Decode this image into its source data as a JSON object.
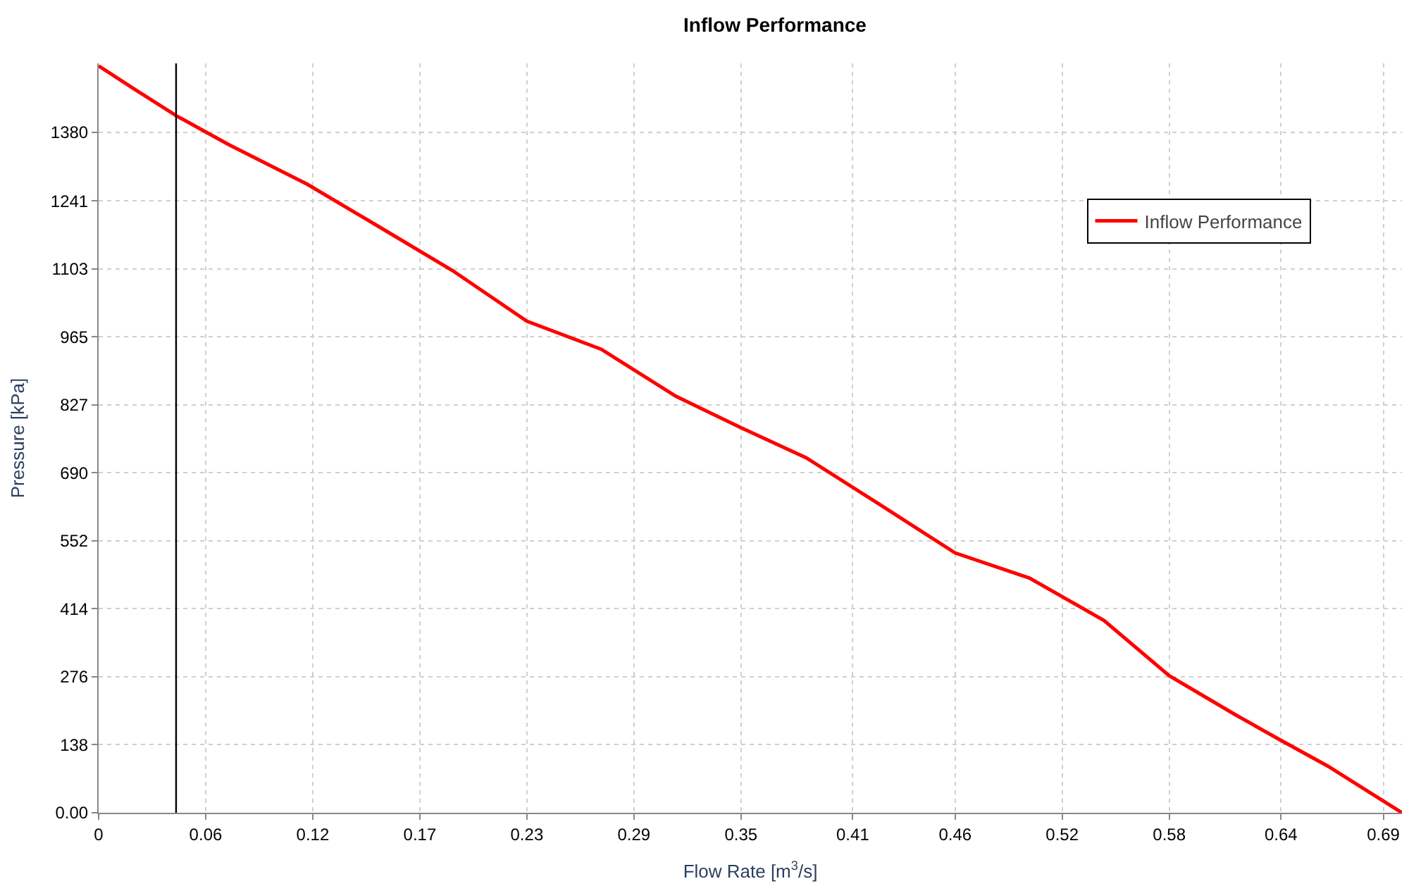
{
  "chart_data": {
    "type": "line",
    "title": "Inflow Performance",
    "xlabel": "Flow Rate [m$^{3}$/s]",
    "ylabel": "Pressure [kPa]",
    "x": [
      0,
      0.02,
      0.0416,
      0.07,
      0.112,
      0.15,
      0.19,
      0.23,
      0.27,
      0.31,
      0.345,
      0.38,
      0.42,
      0.46,
      0.5,
      0.54,
      0.575,
      0.61,
      0.633,
      0.66,
      0.7
    ],
    "series": [
      {
        "name": "Inflow Performance",
        "color": "#ff0000",
        "values": [
          1515,
          1466,
          1414,
          1355,
          1275,
          1190,
          1100,
          997,
          940,
          845,
          781,
          720,
          624,
          527,
          476,
          390,
          278,
          200,
          151,
          95,
          0
        ]
      }
    ],
    "xlim": [
      0,
      0.7
    ],
    "ylim": [
      0,
      1520
    ],
    "xticks": [
      0,
      {
        "value": 0.0575,
        "label": "0.06"
      },
      {
        "value": 0.115,
        "label": "0.12"
      },
      {
        "value": 0.1725,
        "label": "0.17"
      },
      {
        "value": 0.23,
        "label": "0.23"
      },
      {
        "value": 0.2875,
        "label": "0.29"
      },
      {
        "value": 0.345,
        "label": "0.35"
      },
      {
        "value": 0.405,
        "label": "0.41"
      },
      {
        "value": 0.46,
        "label": "0.46"
      },
      {
        "value": 0.5175,
        "label": "0.52"
      },
      {
        "value": 0.575,
        "label": "0.58"
      },
      {
        "value": 0.635,
        "label": "0.64"
      },
      {
        "value": 0.69,
        "label": "0.69"
      }
    ],
    "yticks": [
      {
        "value": 0,
        "label": "0.00"
      },
      {
        "value": 137.9,
        "label": "138"
      },
      {
        "value": 275.8,
        "label": "276"
      },
      {
        "value": 413.7,
        "label": "414"
      },
      {
        "value": 551.6,
        "label": "552"
      },
      {
        "value": 689.5,
        "label": "690"
      },
      {
        "value": 827.4,
        "label": "827"
      },
      {
        "value": 965.3,
        "label": "965"
      },
      {
        "value": 1103.2,
        "label": "1103"
      },
      {
        "value": 1241.1,
        "label": "1241"
      },
      {
        "value": 1380,
        "label": "1380"
      }
    ],
    "ref_lines": [
      {
        "axis": "x",
        "value": 0.0416,
        "color": "#000000",
        "line_style": "solid"
      }
    ],
    "grid": true,
    "legend": "top right",
    "line_style": "solid",
    "marker": "none"
  }
}
